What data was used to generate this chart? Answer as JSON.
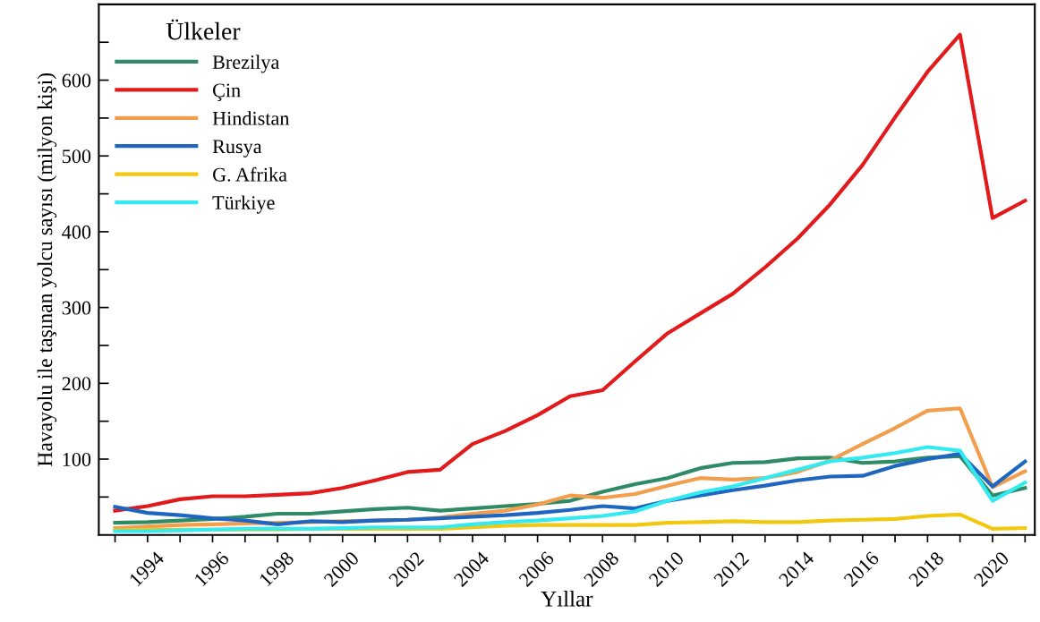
{
  "chart_data": {
    "type": "line",
    "xlabel": "Yıllar",
    "ylabel": "Havayolu ile taşınan yolcu sayısı (milyon kişi)",
    "legend_title": "Ülkeler",
    "legend": "top left",
    "grid": false,
    "line_style": "solid",
    "marker": "none",
    "x": [
      1993,
      1994,
      1995,
      1996,
      1997,
      1998,
      1999,
      2000,
      2001,
      2002,
      2003,
      2004,
      2005,
      2006,
      2007,
      2008,
      2009,
      2010,
      2011,
      2012,
      2013,
      2014,
      2015,
      2016,
      2017,
      2018,
      2019,
      2020,
      2021
    ],
    "xlim": [
      1992.5,
      2021.3
    ],
    "xticks": [
      {
        "value": 1993,
        "label": null
      },
      1994,
      {
        "value": 1995,
        "label": null
      },
      1996,
      {
        "value": 1997,
        "label": null
      },
      1998,
      {
        "value": 1999,
        "label": null
      },
      2000,
      {
        "value": 2001,
        "label": null
      },
      2002,
      {
        "value": 2003,
        "label": null
      },
      2004,
      {
        "value": 2005,
        "label": null
      },
      2006,
      {
        "value": 2007,
        "label": null
      },
      2008,
      {
        "value": 2009,
        "label": null
      },
      2010,
      {
        "value": 2011,
        "label": null
      },
      2012,
      {
        "value": 2013,
        "label": null
      },
      2014,
      {
        "value": 2015,
        "label": null
      },
      2016,
      {
        "value": 2017,
        "label": null
      },
      2018,
      {
        "value": 2019,
        "label": null
      },
      2020,
      {
        "value": 2021,
        "label": null
      }
    ],
    "ylim": [
      0,
      700
    ],
    "yticks": [
      {
        "value": 50,
        "label": null
      },
      100,
      {
        "value": 150,
        "label": null
      },
      200,
      {
        "value": 250,
        "label": null
      },
      300,
      {
        "value": 350,
        "label": null
      },
      400,
      {
        "value": 450,
        "label": null
      },
      500,
      {
        "value": 550,
        "label": null
      },
      600,
      {
        "value": 650,
        "label": null
      }
    ],
    "series": [
      {
        "name": "Brezilya",
        "color": "#2e8b66",
        "values": [
          16,
          17,
          19,
          21,
          24,
          28,
          28,
          31,
          34,
          36,
          32,
          35,
          38,
          41,
          45,
          57,
          67,
          75,
          88,
          95,
          96,
          101,
          102,
          95,
          97,
          102,
          104,
          52,
          62
        ]
      },
      {
        "name": "Çin",
        "color": "#e31a1c",
        "values": [
          32,
          38,
          47,
          51,
          51,
          53,
          55,
          62,
          72,
          83,
          86,
          120,
          137,
          158,
          183,
          191,
          229,
          266,
          292,
          318,
          353,
          391,
          436,
          488,
          551,
          611,
          660,
          418,
          441
        ]
      },
      {
        "name": "Hindistan",
        "color": "#f29e4c",
        "values": [
          9,
          11,
          13,
          14,
          15,
          16,
          17,
          18,
          19,
          20,
          23,
          28,
          32,
          40,
          52,
          49,
          54,
          65,
          75,
          73,
          75,
          83,
          98,
          120,
          141,
          164,
          167,
          63,
          84
        ]
      },
      {
        "name": "Rusya",
        "color": "#1f66c1",
        "values": [
          37,
          29,
          26,
          22,
          19,
          14,
          18,
          17,
          19,
          20,
          22,
          24,
          26,
          29,
          33,
          38,
          35,
          45,
          52,
          59,
          65,
          72,
          77,
          78,
          91,
          100,
          107,
          64,
          97
        ]
      },
      {
        "name": "G. Afrika",
        "color": "#f2c80f",
        "values": [
          6,
          7,
          7,
          7,
          7,
          7,
          8,
          8,
          8,
          8,
          8,
          10,
          12,
          13,
          13,
          13,
          13,
          16,
          17,
          18,
          17,
          17,
          19,
          20,
          21,
          25,
          27,
          8,
          9
        ]
      },
      {
        "name": "Türkiye",
        "color": "#33eaf0",
        "values": [
          5,
          5,
          6,
          7,
          8,
          8,
          8,
          9,
          10,
          10,
          10,
          14,
          17,
          19,
          22,
          25,
          31,
          45,
          56,
          64,
          75,
          86,
          97,
          102,
          108,
          116,
          111,
          45,
          69
        ]
      }
    ]
  }
}
